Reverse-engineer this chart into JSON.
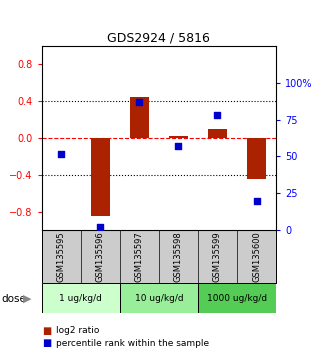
{
  "title": "GDS2924 / 5816",
  "samples": [
    "GSM135595",
    "GSM135596",
    "GSM135597",
    "GSM135598",
    "GSM135599",
    "GSM135600"
  ],
  "log2_ratio": [
    0.0,
    -0.85,
    0.45,
    0.02,
    0.1,
    -0.45
  ],
  "percentile_rank": [
    52,
    2,
    87,
    57,
    78,
    20
  ],
  "bar_color": "#aa2200",
  "dot_color": "#0000cc",
  "bar_width": 0.5,
  "ylim_left": [
    -1.0,
    1.0
  ],
  "ylim_right": [
    0,
    125
  ],
  "yticks_left": [
    -0.8,
    -0.4,
    0.0,
    0.4,
    0.8
  ],
  "yticks_right": [
    0,
    25,
    50,
    75,
    100
  ],
  "dose_groups": [
    {
      "label": "1 ug/kg/d",
      "start": 0,
      "end": 1,
      "color": "#ccffcc"
    },
    {
      "label": "10 ug/kg/d",
      "start": 2,
      "end": 3,
      "color": "#99ee99"
    },
    {
      "label": "1000 ug/kg/d",
      "start": 4,
      "end": 5,
      "color": "#55cc55"
    }
  ],
  "background_color": "#ffffff",
  "label_bg": "#cccccc",
  "legend_items": [
    {
      "label": "log2 ratio",
      "color": "#aa2200"
    },
    {
      "label": "percentile rank within the sample",
      "color": "#0000cc"
    }
  ],
  "dose_text": "dose"
}
